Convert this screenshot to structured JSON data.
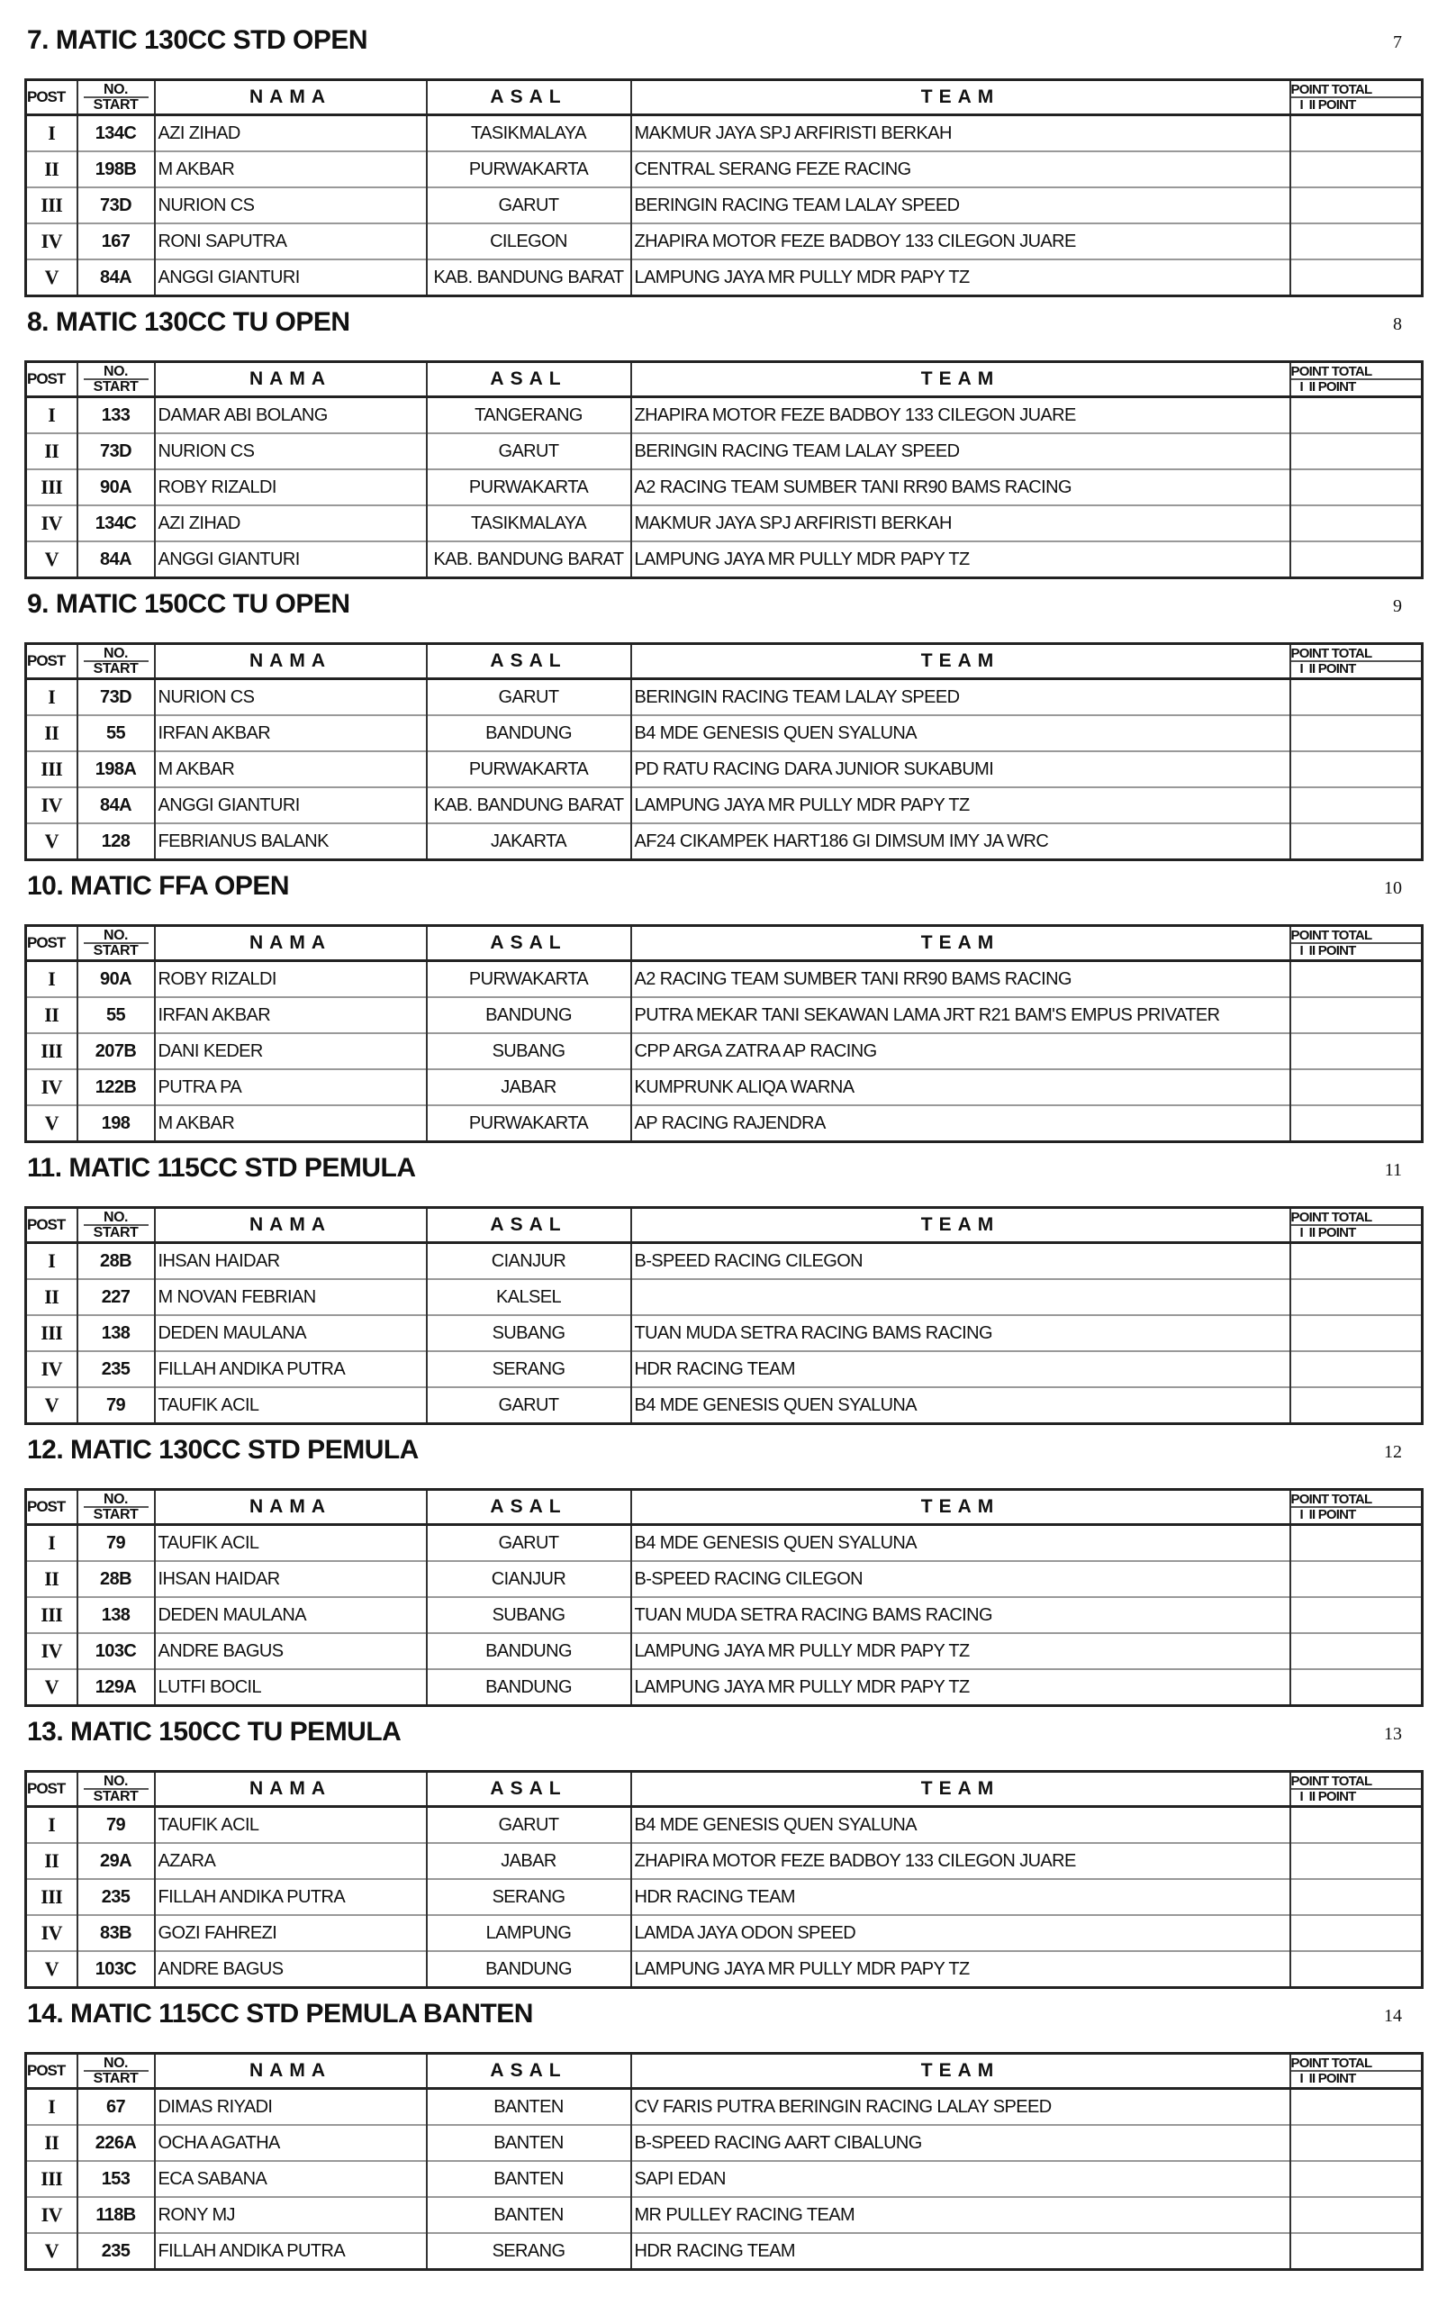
{
  "headers": {
    "post": "POST",
    "no_line1": "NO.",
    "no_line2": "START",
    "nama": "NAMA",
    "asal": "ASAL",
    "team": "TEAM",
    "point_line1": "POINT TOTAL",
    "point_line2": "I  II POINT"
  },
  "sections": [
    {
      "title": "7. MATIC 130CC STD OPEN",
      "number": "7",
      "rows": [
        {
          "pos": "I",
          "no": "134C",
          "nama": "AZI ZIHAD",
          "asal": "TASIKMALAYA",
          "team": "MAKMUR JAYA SPJ ARFIRISTI BERKAH"
        },
        {
          "pos": "II",
          "no": "198B",
          "nama": "M AKBAR",
          "asal": "PURWAKARTA",
          "team": "CENTRAL SERANG FEZE RACING"
        },
        {
          "pos": "III",
          "no": "73D",
          "nama": "NURION CS",
          "asal": "GARUT",
          "team": "BERINGIN RACING TEAM LALAY SPEED"
        },
        {
          "pos": "IV",
          "no": "167",
          "nama": "RONI SAPUTRA",
          "asal": "CILEGON",
          "team": "ZHAPIRA MOTOR FEZE BADBOY 133 CILEGON JUARE"
        },
        {
          "pos": "V",
          "no": "84A",
          "nama": "ANGGI GIANTURI",
          "asal": "KAB. BANDUNG BARAT",
          "team": "LAMPUNG JAYA MR PULLY MDR PAPY TZ"
        }
      ]
    },
    {
      "title": "8. MATIC 130CC TU OPEN",
      "number": "8",
      "rows": [
        {
          "pos": "I",
          "no": "133",
          "nama": "DAMAR ABI BOLANG",
          "asal": "TANGERANG",
          "team": "ZHAPIRA MOTOR FEZE BADBOY 133 CILEGON JUARE"
        },
        {
          "pos": "II",
          "no": "73D",
          "nama": "NURION CS",
          "asal": "GARUT",
          "team": "BERINGIN RACING TEAM LALAY SPEED"
        },
        {
          "pos": "III",
          "no": "90A",
          "nama": "ROBY RIZALDI",
          "asal": "PURWAKARTA",
          "team": "A2 RACING TEAM SUMBER TANI RR90 BAMS RACING"
        },
        {
          "pos": "IV",
          "no": "134C",
          "nama": "AZI ZIHAD",
          "asal": "TASIKMALAYA",
          "team": "MAKMUR JAYA SPJ ARFIRISTI BERKAH"
        },
        {
          "pos": "V",
          "no": "84A",
          "nama": "ANGGI GIANTURI",
          "asal": "KAB. BANDUNG BARAT",
          "team": "LAMPUNG JAYA MR PULLY MDR PAPY TZ"
        }
      ]
    },
    {
      "title": "9. MATIC 150CC TU OPEN",
      "number": "9",
      "rows": [
        {
          "pos": "I",
          "no": "73D",
          "nama": "NURION CS",
          "asal": "GARUT",
          "team": "BERINGIN RACING TEAM LALAY SPEED"
        },
        {
          "pos": "II",
          "no": "55",
          "nama": "IRFAN AKBAR",
          "asal": "BANDUNG",
          "team": "B4 MDE GENESIS QUEN SYALUNA"
        },
        {
          "pos": "III",
          "no": "198A",
          "nama": "M AKBAR",
          "asal": "PURWAKARTA",
          "team": "PD RATU RACING DARA JUNIOR SUKABUMI"
        },
        {
          "pos": "IV",
          "no": "84A",
          "nama": "ANGGI GIANTURI",
          "asal": "KAB. BANDUNG BARAT",
          "team": "LAMPUNG JAYA MR PULLY MDR PAPY TZ"
        },
        {
          "pos": "V",
          "no": "128",
          "nama": "FEBRIANUS BALANK",
          "asal": "JAKARTA",
          "team": "AF24 CIKAMPEK HART186 GI DIMSUM IMY JA WRC"
        }
      ]
    },
    {
      "title": "10. MATIC FFA OPEN",
      "number": "10",
      "rows": [
        {
          "pos": "I",
          "no": "90A",
          "nama": "ROBY RIZALDI",
          "asal": "PURWAKARTA",
          "team": "A2 RACING TEAM SUMBER TANI RR90 BAMS RACING"
        },
        {
          "pos": "II",
          "no": "55",
          "nama": "IRFAN AKBAR",
          "asal": "BANDUNG",
          "team": "PUTRA MEKAR TANI SEKAWAN LAMA JRT R21 BAM'S EMPUS PRIVATER"
        },
        {
          "pos": "III",
          "no": "207B",
          "nama": "DANI KEDER",
          "asal": "SUBANG",
          "team": "CPP ARGA ZATRA AP RACING"
        },
        {
          "pos": "IV",
          "no": "122B",
          "nama": "PUTRA PA",
          "asal": "JABAR",
          "team": "KUMPRUNK ALIQA WARNA"
        },
        {
          "pos": "V",
          "no": "198",
          "nama": "M AKBAR",
          "asal": "PURWAKARTA",
          "team": "AP RACING RAJENDRA"
        }
      ]
    },
    {
      "title": "11. MATIC 115CC STD PEMULA",
      "number": "11",
      "rows": [
        {
          "pos": "I",
          "no": "28B",
          "nama": "IHSAN HAIDAR",
          "asal": "CIANJUR",
          "team": "B-SPEED RACING CILEGON"
        },
        {
          "pos": "II",
          "no": "227",
          "nama": "M NOVAN FEBRIAN",
          "asal": "KALSEL",
          "team": ""
        },
        {
          "pos": "III",
          "no": "138",
          "nama": "DEDEN MAULANA",
          "asal": "SUBANG",
          "team": "TUAN MUDA SETRA RACING BAMS RACING"
        },
        {
          "pos": "IV",
          "no": "235",
          "nama": "FILLAH ANDIKA PUTRA",
          "asal": "SERANG",
          "team": "HDR RACING TEAM"
        },
        {
          "pos": "V",
          "no": "79",
          "nama": "TAUFIK ACIL",
          "asal": "GARUT",
          "team": "B4 MDE GENESIS QUEN SYALUNA"
        }
      ]
    },
    {
      "title": "12. MATIC 130CC STD PEMULA",
      "number": "12",
      "rows": [
        {
          "pos": "I",
          "no": "79",
          "nama": "TAUFIK ACIL",
          "asal": "GARUT",
          "team": "B4 MDE GENESIS QUEN SYALUNA"
        },
        {
          "pos": "II",
          "no": "28B",
          "nama": "IHSAN HAIDAR",
          "asal": "CIANJUR",
          "team": "B-SPEED RACING CILEGON"
        },
        {
          "pos": "III",
          "no": "138",
          "nama": "DEDEN MAULANA",
          "asal": "SUBANG",
          "team": "TUAN MUDA SETRA RACING BAMS RACING"
        },
        {
          "pos": "IV",
          "no": "103C",
          "nama": "ANDRE BAGUS",
          "asal": "BANDUNG",
          "team": "LAMPUNG JAYA MR PULLY MDR PAPY TZ"
        },
        {
          "pos": "V",
          "no": "129A",
          "nama": "LUTFI BOCIL",
          "asal": "BANDUNG",
          "team": "LAMPUNG JAYA MR PULLY MDR PAPY TZ"
        }
      ]
    },
    {
      "title": "13. MATIC 150CC TU PEMULA",
      "number": "13",
      "rows": [
        {
          "pos": "I",
          "no": "79",
          "nama": "TAUFIK ACIL",
          "asal": "GARUT",
          "team": "B4 MDE GENESIS QUEN SYALUNA"
        },
        {
          "pos": "II",
          "no": "29A",
          "nama": "AZARA",
          "asal": "JABAR",
          "team": "ZHAPIRA MOTOR FEZE BADBOY 133 CILEGON JUARE"
        },
        {
          "pos": "III",
          "no": "235",
          "nama": "FILLAH ANDIKA PUTRA",
          "asal": "SERANG",
          "team": "HDR RACING TEAM"
        },
        {
          "pos": "IV",
          "no": "83B",
          "nama": "GOZI FAHREZI",
          "asal": "LAMPUNG",
          "team": "LAMDA JAYA ODON SPEED"
        },
        {
          "pos": "V",
          "no": "103C",
          "nama": "ANDRE BAGUS",
          "asal": "BANDUNG",
          "team": "LAMPUNG JAYA MR PULLY MDR PAPY TZ"
        }
      ]
    },
    {
      "title": "14. MATIC 115CC STD PEMULA BANTEN",
      "number": "14",
      "rows": [
        {
          "pos": "I",
          "no": "67",
          "nama": "DIMAS RIYADI",
          "asal": "BANTEN",
          "team": "CV FARIS PUTRA BERINGIN RACING LALAY SPEED"
        },
        {
          "pos": "II",
          "no": "226A",
          "nama": "OCHA AGATHA",
          "asal": "BANTEN",
          "team": "B-SPEED RACING AART CIBALUNG"
        },
        {
          "pos": "III",
          "no": "153",
          "nama": "ECA SABANA",
          "asal": "BANTEN",
          "team": "SAPI EDAN"
        },
        {
          "pos": "IV",
          "no": "118B",
          "nama": "RONY MJ",
          "asal": "BANTEN",
          "team": "MR PULLEY RACING TEAM"
        },
        {
          "pos": "V",
          "no": "235",
          "nama": "FILLAH ANDIKA PUTRA",
          "asal": "SERANG",
          "team": "HDR RACING TEAM"
        }
      ]
    }
  ]
}
